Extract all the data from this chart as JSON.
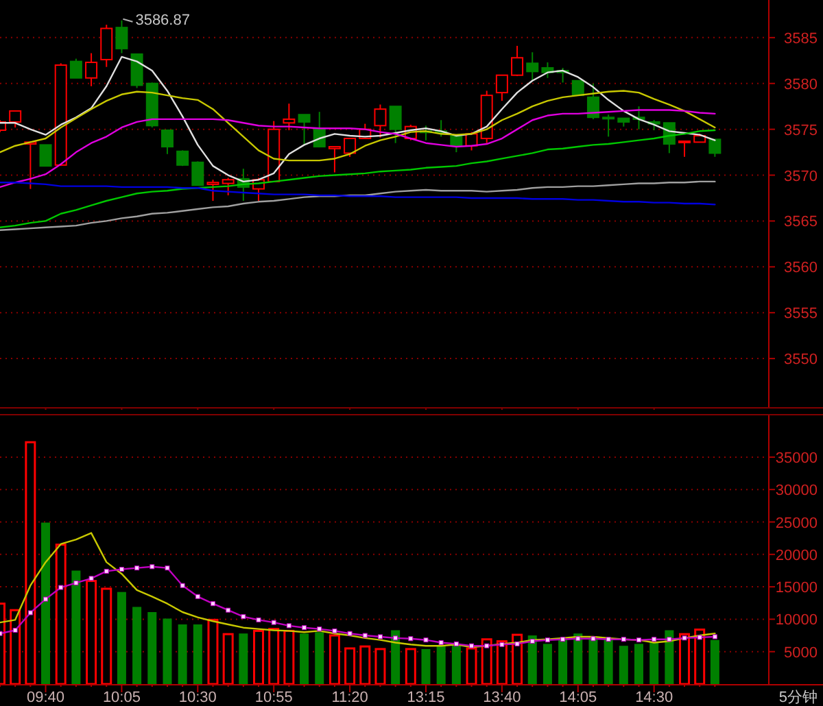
{
  "chart_data": [
    {
      "type": "candlestick",
      "tick_labels": "y",
      "grid": "y",
      "ylim": [
        3544.7,
        3589.1
      ],
      "yticks": [
        3550,
        3555,
        3560,
        3565,
        3570,
        3575,
        3580,
        3585
      ],
      "categories": [
        null,
        null,
        null,
        "09:40",
        null,
        null,
        null,
        null,
        "10:05",
        null,
        null,
        null,
        null,
        "10:30",
        null,
        null,
        null,
        null,
        "10:55",
        null,
        null,
        null,
        null,
        "11:20",
        null,
        null,
        null,
        null,
        "13:15",
        null,
        null,
        null,
        null,
        "13:40",
        null,
        null,
        null,
        null,
        "14:05",
        null,
        null,
        null,
        null,
        "14:30",
        null,
        null,
        null,
        null
      ],
      "ohlc": [
        [
          3574.9,
          3576.0,
          3574.7,
          3575.8
        ],
        [
          3575.8,
          3577.0,
          3575.2,
          3577.0
        ],
        [
          3573.4,
          3573.7,
          3568.5,
          3573.6
        ],
        [
          3573.3,
          3573.3,
          3571.0,
          3571.0
        ],
        [
          3571.1,
          3582.2,
          3571.0,
          3582.0
        ],
        [
          3582.4,
          3582.7,
          3580.6,
          3580.6
        ],
        [
          3580.6,
          3583.3,
          3579.7,
          3582.3
        ],
        [
          3582.6,
          3586.4,
          3581.8,
          3586.0
        ],
        [
          3586.1,
          3586.87,
          3583.3,
          3583.8
        ],
        [
          3583.2,
          3583.2,
          3579.5,
          3579.8
        ],
        [
          3580.0,
          3580.1,
          3575.2,
          3575.4
        ],
        [
          3574.9,
          3574.9,
          3572.3,
          3573.1
        ],
        [
          3572.6,
          3572.7,
          3571.0,
          3571.1
        ],
        [
          3571.4,
          3571.5,
          3568.9,
          3568.9
        ],
        [
          3569.0,
          3569.5,
          3567.2,
          3569.2
        ],
        [
          3569.1,
          3569.7,
          3567.8,
          3569.5
        ],
        [
          3569.6,
          3570.7,
          3567.2,
          3568.7
        ],
        [
          3568.5,
          3569.7,
          3567.2,
          3569.5
        ],
        [
          3569.3,
          3575.9,
          3569.3,
          3575.0
        ],
        [
          3575.7,
          3577.8,
          3574.9,
          3576.1
        ],
        [
          3576.6,
          3576.6,
          3573.4,
          3575.8
        ],
        [
          3575.0,
          3576.9,
          3573.1,
          3573.1
        ],
        [
          3572.9,
          3573.1,
          3570.3,
          3573.1
        ],
        [
          3572.4,
          3574.0,
          3572.0,
          3574.0
        ],
        [
          3574.0,
          3575.6,
          3574.0,
          3575.0
        ],
        [
          3575.4,
          3577.7,
          3574.1,
          3577.2
        ],
        [
          3577.5,
          3577.5,
          3573.5,
          3575.0
        ],
        [
          3574.0,
          3575.5,
          3573.8,
          3575.3
        ],
        [
          3574.8,
          3575.4,
          3573.8,
          3574.7
        ],
        [
          3574.8,
          3576.0,
          3574.2,
          3574.6
        ],
        [
          3574.3,
          3574.4,
          3572.5,
          3573.2
        ],
        [
          3573.2,
          3574.7,
          3572.7,
          3574.5
        ],
        [
          3574.0,
          3579.2,
          3573.5,
          3578.7
        ],
        [
          3579.0,
          3580.9,
          3578.1,
          3580.9
        ],
        [
          3580.9,
          3584.1,
          3580.8,
          3582.8
        ],
        [
          3582.2,
          3583.4,
          3580.3,
          3581.3
        ],
        [
          3581.7,
          3582.3,
          3580.6,
          3581.2
        ],
        [
          3581.4,
          3581.7,
          3580.1,
          3581.2
        ],
        [
          3580.3,
          3580.3,
          3578.7,
          3578.7
        ],
        [
          3578.5,
          3580.0,
          3576.1,
          3576.3
        ],
        [
          3576.3,
          3576.6,
          3574.2,
          3576.2
        ],
        [
          3576.2,
          3576.2,
          3575.3,
          3575.8
        ],
        [
          3576.3,
          3577.5,
          3575.0,
          3576.1
        ],
        [
          3575.8,
          3576.0,
          3574.9,
          3575.6
        ],
        [
          3575.7,
          3575.7,
          3572.4,
          3573.4
        ],
        [
          3573.6,
          3573.7,
          3572.0,
          3573.7
        ],
        [
          3573.6,
          3574.5,
          3573.6,
          3574.3
        ],
        [
          3573.9,
          3573.9,
          3572.0,
          3572.4
        ]
      ],
      "colors": [
        "#ff0000",
        "#ff0000",
        "#ff0000",
        "#008000",
        "#ff0000",
        "#008000",
        "#ff0000",
        "#ff0000",
        "#008000",
        "#008000",
        "#008000",
        "#008000",
        "#008000",
        "#008000",
        "#ff0000",
        "#ff0000",
        "#008000",
        "#ff0000",
        "#ff0000",
        "#ff0000",
        "#008000",
        "#008000",
        "#ff0000",
        "#ff0000",
        "#ff0000",
        "#ff0000",
        "#008000",
        "#ff0000",
        "#008000",
        "#008000",
        "#008000",
        "#ff0000",
        "#ff0000",
        "#ff0000",
        "#ff0000",
        "#008000",
        "#008000",
        "#008000",
        "#008000",
        "#008000",
        "#008000",
        "#008000",
        "#008000",
        "#008000",
        "#008000",
        "#ff0000",
        "#ff0000",
        "#008000"
      ],
      "series": [
        {
          "type": "line",
          "color": "#e0e0e0",
          "values": [
            3575.7,
            3575.7,
            3575.0,
            3574.4,
            3575.5,
            3576.3,
            3577.3,
            3579.7,
            3582.9,
            3582.4,
            3581.4,
            3579.2,
            3576.4,
            3573.3,
            3571.0,
            3570.0,
            3569.3,
            3569.5,
            3570.2,
            3572.3,
            3573.3,
            3574.0,
            3574.5,
            3574.3,
            3574.2,
            3574.3,
            3574.6,
            3574.9,
            3575.1,
            3574.8,
            3574.3,
            3574.5,
            3575.3,
            3577.2,
            3579.0,
            3580.3,
            3581.2,
            3581.4,
            3580.7,
            3579.6,
            3578.2,
            3577.0,
            3576.1,
            3575.5,
            3574.8,
            3574.6,
            3574.4,
            3573.8
          ]
        },
        {
          "type": "line",
          "color": "#c8c800",
          "values": [
            3572.5,
            3573.2,
            3573.6,
            3574.0,
            3575.2,
            3576.2,
            3577.2,
            3578.1,
            3578.8,
            3579.1,
            3579.0,
            3578.7,
            3578.4,
            3578.2,
            3577.2,
            3575.7,
            3574.2,
            3572.7,
            3571.8,
            3571.6,
            3571.6,
            3571.6,
            3571.8,
            3572.3,
            3573.2,
            3573.8,
            3574.2,
            3574.7,
            3574.8,
            3574.5,
            3574.4,
            3574.5,
            3575.0,
            3576.0,
            3576.7,
            3577.5,
            3578.1,
            3578.5,
            3578.7,
            3578.9,
            3579.1,
            3579.2,
            3579.0,
            3578.3,
            3577.7,
            3577.0,
            3576.1,
            3575.2
          ]
        },
        {
          "type": "line",
          "color": "#e000e0",
          "values": [
            3568.7,
            3569.2,
            3569.6,
            3570.1,
            3571.2,
            3572.5,
            3573.5,
            3574.2,
            3575.2,
            3575.8,
            3576.1,
            3576.1,
            3576.1,
            3576.1,
            3576.1,
            3576.0,
            3575.7,
            3575.4,
            3575.3,
            3575.3,
            3575.2,
            3575.1,
            3575.1,
            3575.1,
            3575.0,
            3574.7,
            3574.5,
            3574.0,
            3573.5,
            3573.3,
            3573.1,
            3573.2,
            3573.4,
            3574.0,
            3575.0,
            3576.0,
            3576.5,
            3576.7,
            3576.7,
            3576.8,
            3576.9,
            3577.0,
            3577.1,
            3577.1,
            3577.1,
            3577.0,
            3576.8,
            3576.7
          ]
        },
        {
          "type": "line",
          "color": "#00c800",
          "values": [
            3564.3,
            3564.5,
            3564.8,
            3565.0,
            3565.8,
            3566.2,
            3566.7,
            3567.2,
            3567.6,
            3568.0,
            3568.2,
            3568.3,
            3568.5,
            3568.6,
            3568.7,
            3568.8,
            3569.0,
            3569.1,
            3569.3,
            3569.5,
            3569.7,
            3569.9,
            3570.0,
            3570.1,
            3570.2,
            3570.4,
            3570.5,
            3570.6,
            3570.8,
            3570.9,
            3571.0,
            3571.3,
            3571.5,
            3571.8,
            3572.1,
            3572.4,
            3572.8,
            3572.9,
            3573.1,
            3573.3,
            3573.4,
            3573.6,
            3573.8,
            3574.0,
            3574.3,
            3574.5,
            3574.8,
            3574.9
          ]
        },
        {
          "type": "line",
          "color": "#a0a0a0",
          "values": [
            3564.0,
            3564.1,
            3564.2,
            3564.3,
            3564.4,
            3564.5,
            3564.8,
            3565.0,
            3565.3,
            3565.5,
            3565.8,
            3565.9,
            3566.1,
            3566.3,
            3566.5,
            3566.6,
            3566.9,
            3567.1,
            3567.2,
            3567.4,
            3567.6,
            3567.7,
            3567.7,
            3567.8,
            3567.8,
            3568.0,
            3568.2,
            3568.3,
            3568.4,
            3568.3,
            3568.3,
            3568.3,
            3568.2,
            3568.3,
            3568.4,
            3568.6,
            3568.7,
            3568.7,
            3568.8,
            3568.8,
            3568.9,
            3569.0,
            3569.1,
            3569.1,
            3569.2,
            3569.2,
            3569.3,
            3569.3
          ]
        },
        {
          "type": "line",
          "color": "#0000e0",
          "values": [
            3569.2,
            3569.2,
            3569.1,
            3569.0,
            3568.8,
            3568.8,
            3568.8,
            3568.8,
            3568.7,
            3568.7,
            3568.7,
            3568.7,
            3568.6,
            3568.6,
            3568.3,
            3568.2,
            3568.1,
            3568.0,
            3567.9,
            3567.9,
            3567.9,
            3567.8,
            3567.8,
            3567.7,
            3567.7,
            3567.7,
            3567.6,
            3567.6,
            3567.6,
            3567.6,
            3567.6,
            3567.5,
            3567.5,
            3567.5,
            3567.5,
            3567.4,
            3567.4,
            3567.4,
            3567.3,
            3567.3,
            3567.2,
            3567.1,
            3567.1,
            3567.0,
            3567.0,
            3566.9,
            3566.9,
            3566.8
          ]
        }
      ],
      "annotations": [
        {
          "text": "3586.87",
          "x": "10:05",
          "y": 3586.87
        }
      ]
    },
    {
      "type": "bar",
      "grid": "y",
      "ylim": [
        0,
        41650
      ],
      "yticks": [
        5000,
        10000,
        15000,
        20000,
        25000,
        30000,
        35000
      ],
      "categories": [
        null,
        null,
        null,
        "09:40",
        null,
        null,
        null,
        null,
        "10:05",
        null,
        null,
        null,
        null,
        "10:30",
        null,
        null,
        null,
        null,
        "10:55",
        null,
        null,
        null,
        null,
        "11:20",
        null,
        null,
        null,
        null,
        "13:15",
        null,
        null,
        null,
        null,
        "13:40",
        null,
        null,
        null,
        null,
        "14:05",
        null,
        null,
        null,
        null,
        "14:30",
        null,
        null,
        null,
        null
      ],
      "values": [
        12400,
        11400,
        37300,
        24900,
        21500,
        17500,
        15900,
        14700,
        14200,
        11900,
        11100,
        10100,
        9200,
        9200,
        9900,
        7700,
        7800,
        8200,
        8500,
        8200,
        7800,
        8000,
        7500,
        5500,
        5800,
        5400,
        8300,
        5400,
        5400,
        5900,
        6100,
        5500,
        6900,
        6600,
        7600,
        7500,
        6200,
        7100,
        7800,
        7300,
        7100,
        5900,
        6200,
        6400,
        8300,
        7700,
        8400,
        6800
      ],
      "colors": [
        "#ff0000",
        "#ff0000",
        "#ff0000",
        "#008000",
        "#ff0000",
        "#008000",
        "#ff0000",
        "#ff0000",
        "#008000",
        "#008000",
        "#008000",
        "#008000",
        "#008000",
        "#008000",
        "#ff0000",
        "#ff0000",
        "#008000",
        "#ff0000",
        "#ff0000",
        "#ff0000",
        "#008000",
        "#008000",
        "#ff0000",
        "#ff0000",
        "#ff0000",
        "#ff0000",
        "#008000",
        "#ff0000",
        "#008000",
        "#008000",
        "#008000",
        "#ff0000",
        "#ff0000",
        "#ff0000",
        "#ff0000",
        "#008000",
        "#008000",
        "#008000",
        "#008000",
        "#008000",
        "#008000",
        "#008000",
        "#008000",
        "#008000",
        "#008000",
        "#ff0000",
        "#ff0000",
        "#008000"
      ],
      "series": [
        {
          "type": "line",
          "color": "#c8c800",
          "values": [
            9500,
            9900,
            15200,
            18800,
            21600,
            22300,
            23300,
            18800,
            17000,
            14500,
            13500,
            12400,
            11100,
            10300,
            9700,
            9200,
            8700,
            8500,
            8300,
            8200,
            8000,
            8200,
            7800,
            7500,
            7100,
            6800,
            6400,
            6100,
            5900,
            5900,
            6100,
            5700,
            5900,
            6200,
            6400,
            6800,
            6900,
            7100,
            7300,
            7300,
            7100,
            6900,
            6800,
            6400,
            6600,
            7100,
            7500,
            7800
          ]
        },
        {
          "type": "line",
          "color": "#c000c0",
          "marker": "square",
          "values": [
            7800,
            8300,
            11000,
            13100,
            14900,
            15600,
            16300,
            17400,
            17700,
            17900,
            18100,
            17900,
            15200,
            13500,
            12400,
            11400,
            10400,
            9900,
            9500,
            9000,
            8700,
            8500,
            8200,
            7800,
            7500,
            7300,
            7100,
            7000,
            6800,
            6400,
            6200,
            5900,
            5900,
            6100,
            6200,
            6600,
            6800,
            6900,
            7000,
            7000,
            6900,
            6900,
            6800,
            6900,
            6900,
            7100,
            7200,
            7300
          ]
        }
      ],
      "annotations": [
        "5分钟"
      ]
    }
  ]
}
